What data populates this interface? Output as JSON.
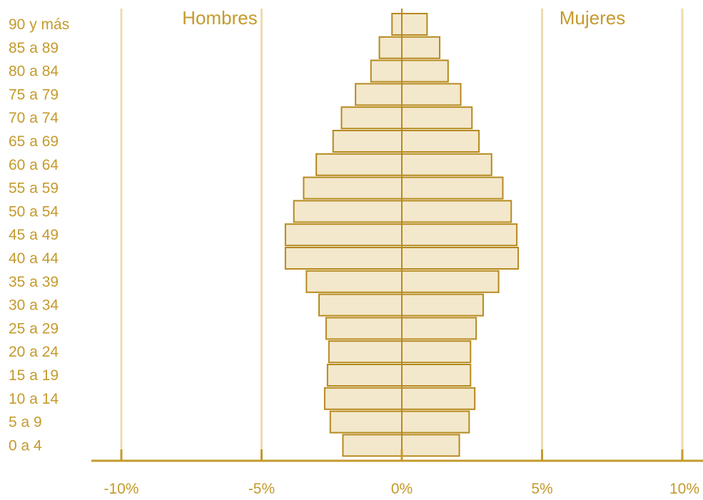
{
  "colors": {
    "accent": "#c49a2c",
    "bar_fill": "#f3e8cc",
    "bar_stroke": "#b68a1e",
    "gridline": "#ecdcad",
    "axis": "#c49a2c",
    "text": "#c49a2c"
  },
  "chart_data": {
    "type": "bar",
    "subtype": "population-pyramid",
    "orientation": "horizontal",
    "categories": [
      "90 y más",
      "85 a 89",
      "80 a 84",
      "75 a 79",
      "70 a 74",
      "65 a 69",
      "60 a 64",
      "55 a 59",
      "50 a 54",
      "45 a 49",
      "40 a 44",
      "35 a 39",
      "30 a 34",
      "25 a 29",
      "20 a 24",
      "15 a 19",
      "10 a 14",
      "5 a 9",
      "0 a 4"
    ],
    "series": [
      {
        "name": "Hombres",
        "side": "left",
        "values": [
          0.35,
          0.8,
          1.1,
          1.65,
          2.15,
          2.45,
          3.05,
          3.5,
          3.85,
          4.15,
          4.15,
          3.4,
          2.95,
          2.7,
          2.6,
          2.65,
          2.75,
          2.55,
          2.1
        ]
      },
      {
        "name": "Mujeres",
        "side": "right",
        "values": [
          0.9,
          1.35,
          1.65,
          2.1,
          2.5,
          2.75,
          3.2,
          3.6,
          3.9,
          4.1,
          4.15,
          3.45,
          2.9,
          2.65,
          2.45,
          2.45,
          2.6,
          2.4,
          2.05
        ]
      }
    ],
    "xlim": [
      -10,
      10
    ],
    "xticks": [
      -10,
      -5,
      0,
      5,
      10
    ],
    "xtick_labels": [
      "-10%",
      "-5%",
      "0%",
      "5%",
      "10%"
    ],
    "grid": true,
    "legend": "none",
    "side_labels": {
      "left": "Hombres",
      "right": "Mujeres"
    },
    "title": "",
    "xlabel": "",
    "ylabel": ""
  }
}
